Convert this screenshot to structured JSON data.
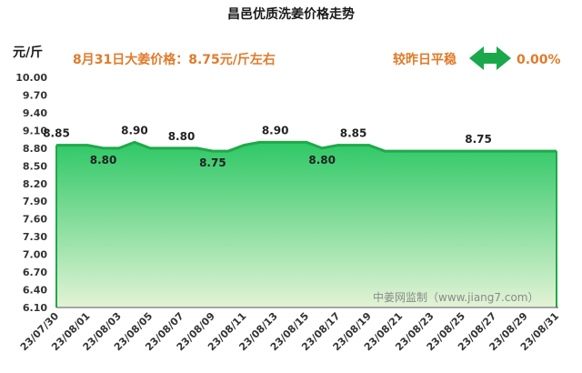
{
  "title": "昌邑优质洗姜价格走势",
  "unit": "元/斤",
  "headline": "8月31日大姜价格：8.75元/斤左右",
  "change_label": "较昨日平稳",
  "change_value": "0.00%",
  "change_icon": "double-arrow-icon",
  "watermark": "中姜网监制（www.jiang7.com）",
  "colors": {
    "line": "#21a84a",
    "fill_top": "#2fc866",
    "fill_bottom": "#e3f3d6",
    "headline": "#e07b2a",
    "arrow": "#1aa84b"
  },
  "chart_data": {
    "type": "area",
    "ylim": [
      6.1,
      10.0
    ],
    "yticks": [
      "6.10",
      "6.40",
      "6.70",
      "7.00",
      "7.30",
      "7.60",
      "7.90",
      "8.20",
      "8.50",
      "8.80",
      "9.10",
      "9.40",
      "9.70",
      "10.00"
    ],
    "dates": [
      "23/07/30",
      "23/07/31",
      "23/08/01",
      "23/08/02",
      "23/08/03",
      "23/08/04",
      "23/08/05",
      "23/08/06",
      "23/08/07",
      "23/08/08",
      "23/08/09",
      "23/08/10",
      "23/08/11",
      "23/08/12",
      "23/08/13",
      "23/08/14",
      "23/08/15",
      "23/08/16",
      "23/08/17",
      "23/08/18",
      "23/08/19",
      "23/08/20",
      "23/08/21",
      "23/08/22",
      "23/08/23",
      "23/08/24",
      "23/08/25",
      "23/08/26",
      "23/08/27",
      "23/08/28",
      "23/08/29",
      "23/08/30",
      "23/08/31"
    ],
    "values": [
      8.85,
      8.85,
      8.85,
      8.8,
      8.8,
      8.9,
      8.8,
      8.8,
      8.8,
      8.8,
      8.75,
      8.75,
      8.85,
      8.9,
      8.9,
      8.9,
      8.9,
      8.8,
      8.85,
      8.85,
      8.85,
      8.75,
      8.75,
      8.75,
      8.75,
      8.75,
      8.75,
      8.75,
      8.75,
      8.75,
      8.75,
      8.75,
      8.75
    ],
    "xtick_labels": [
      "23/07/30",
      "23/08/01",
      "23/08/03",
      "23/08/05",
      "23/08/07",
      "23/08/09",
      "23/08/11",
      "23/08/13",
      "23/08/15",
      "23/08/17",
      "23/08/19",
      "23/08/21",
      "23/08/23",
      "23/08/25",
      "23/08/27",
      "23/08/29",
      "23/08/31"
    ],
    "data_labels": [
      {
        "date": "23/07/30",
        "text": "8.85",
        "pos": "above"
      },
      {
        "date": "23/08/02",
        "text": "8.80",
        "pos": "below"
      },
      {
        "date": "23/08/04",
        "text": "8.90",
        "pos": "above"
      },
      {
        "date": "23/08/07",
        "text": "8.80",
        "pos": "above"
      },
      {
        "date": "23/08/09",
        "text": "8.75",
        "pos": "below"
      },
      {
        "date": "23/08/13",
        "text": "8.90",
        "pos": "above"
      },
      {
        "date": "23/08/16",
        "text": "8.80",
        "pos": "below"
      },
      {
        "date": "23/08/18",
        "text": "8.85",
        "pos": "above"
      },
      {
        "date": "23/08/26",
        "text": "8.75",
        "pos": "above"
      }
    ],
    "grid": false,
    "legend": "none"
  }
}
